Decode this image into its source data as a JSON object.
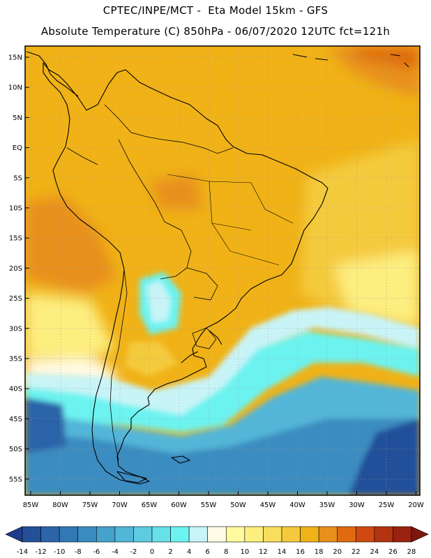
{
  "header": {
    "line1": "CPTEC/INPE/MCT -  Eta Model 15km - GFS",
    "line2": "Absolute Temperature (C) 850hPa - 06/07/2020 12UTC fct=121h"
  },
  "map": {
    "lat_labels": [
      "15N",
      "10N",
      "5N",
      "EQ",
      "5S",
      "10S",
      "15S",
      "20S",
      "25S",
      "30S",
      "35S",
      "40S",
      "45S",
      "50S",
      "55S"
    ],
    "lon_labels": [
      "85W",
      "80W",
      "75W",
      "70W",
      "65W",
      "60W",
      "55W",
      "50W",
      "45W",
      "40W",
      "35W",
      "30W",
      "25W",
      "20W"
    ]
  },
  "colorbar": {
    "labels": [
      "-14",
      "-12",
      "-10",
      "-8",
      "-6",
      "-4",
      "-2",
      "0",
      "2",
      "4",
      "6",
      "8",
      "10",
      "12",
      "14",
      "16",
      "18",
      "20",
      "22",
      "24",
      "26",
      "28"
    ],
    "colors": [
      "#1f3c8c",
      "#24509a",
      "#2b64a8",
      "#3178b4",
      "#3a8cc0",
      "#45a2cc",
      "#52b6d8",
      "#5fcbe3",
      "#67e0ea",
      "#6cf3f0",
      "#c9f4f7",
      "#fffbe6",
      "#fffaa0",
      "#fdee80",
      "#f9de5e",
      "#f4ca3c",
      "#f0b216",
      "#e8901a",
      "#df6a10",
      "#cf4910",
      "#b43310",
      "#9a2210",
      "#7e1610"
    ]
  }
}
